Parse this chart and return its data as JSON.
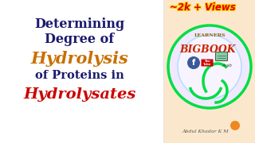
{
  "bg_color": "#ffffff",
  "title_line1": "Determining",
  "title_line2": "Degree of",
  "hydrolysis": "Hydrolysis",
  "subtitle": "of Proteins in",
  "hydrolysates": "Hydrolysates",
  "views_text": "~2k + Views",
  "dark_blue": "#1a1a6e",
  "orange": "#c87000",
  "red": "#cc0000",
  "views_red": "#dd0000",
  "views_yellow": "#ffdd00",
  "views_blue_outline": "#0000cc",
  "logo_green": "#00dd44",
  "logo_purple": "#aa44cc",
  "logo_red": "#cc2200",
  "logo_bg": "#e8e0ff",
  "right_panel_bg": "#fbe8cc",
  "fb_blue": "#3b5998",
  "yt_red": "#cc0000",
  "author": "Abdul Khadar K M",
  "author_color": "#555555",
  "learners_color": "#886600",
  "bigbook_color": "#cc2200"
}
